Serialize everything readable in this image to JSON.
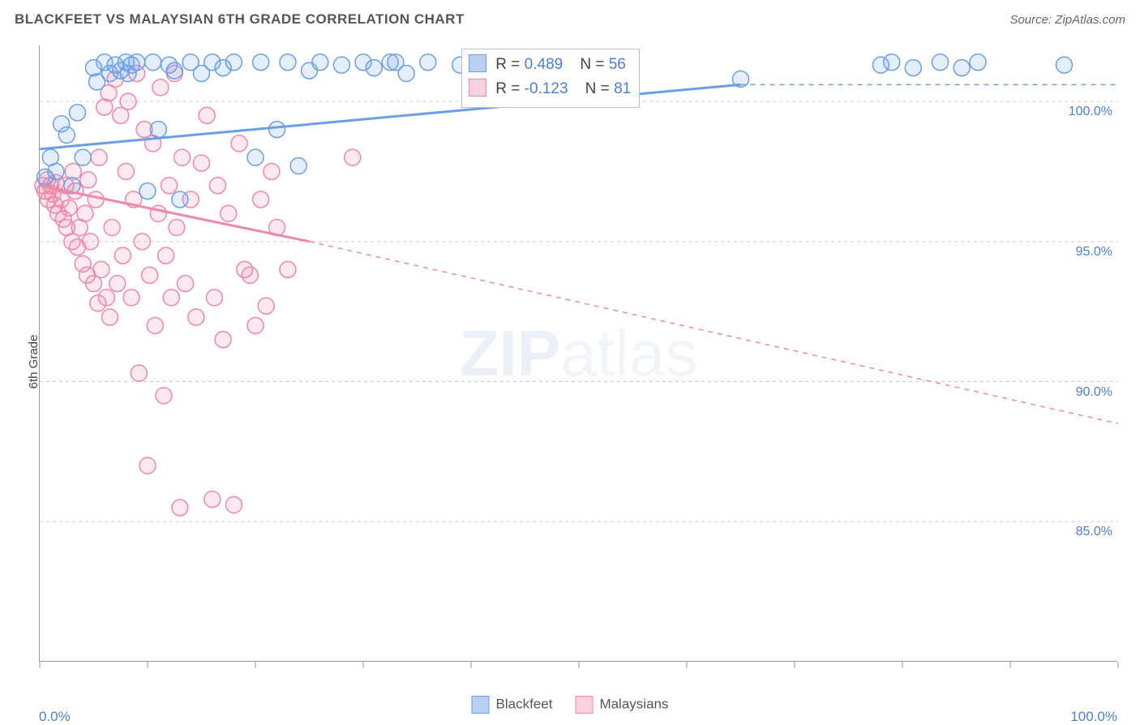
{
  "header": {
    "title": "BLACKFEET VS MALAYSIAN 6TH GRADE CORRELATION CHART",
    "source": "Source: ZipAtlas.com",
    "title_color": "#555555",
    "title_fontsize": 17
  },
  "watermark": {
    "zip": "ZIP",
    "atlas": "atlas"
  },
  "chart": {
    "type": "scatter-with-regression",
    "ylabel": "6th Grade",
    "xlim": [
      0,
      100
    ],
    "ylim": [
      80,
      102
    ],
    "x_tick_positions": [
      0,
      10,
      20,
      30,
      40,
      50,
      60,
      70,
      80,
      90,
      100
    ],
    "x_tick_labels_shown": {
      "0": "0.0%",
      "100": "100.0%"
    },
    "y_gridlines": [
      85,
      90,
      95,
      100
    ],
    "y_tick_labels": {
      "85": "85.0%",
      "90": "90.0%",
      "95": "95.0%",
      "100": "100.0%"
    },
    "grid_color": "#cccccc",
    "grid_dash": "4,4",
    "axis_color": "#999999",
    "label_color": "#4a7fd6",
    "plot_bg": "#ffffff",
    "marker_radius": 10,
    "marker_stroke_width": 1.5,
    "marker_fill_opacity": 0.18
  },
  "series": {
    "blackfeet": {
      "label": "Blackfeet",
      "color": "#6a9ee8",
      "fill": "#b9d0f2",
      "R": "0.489",
      "N": "56",
      "regression": {
        "x1": 0,
        "y1": 98.3,
        "x2": 65,
        "y2": 100.6,
        "solid": true,
        "dash_after_x": 65,
        "x3": 100,
        "y3": 100.6
      },
      "points": [
        [
          0.5,
          97.3
        ],
        [
          1,
          98.0
        ],
        [
          1.5,
          97.5
        ],
        [
          2,
          99.2
        ],
        [
          2.5,
          98.8
        ],
        [
          3,
          97.0
        ],
        [
          3.5,
          99.6
        ],
        [
          4,
          98.0
        ],
        [
          5,
          101.2
        ],
        [
          5.3,
          100.7
        ],
        [
          6,
          101.4
        ],
        [
          6.5,
          101.0
        ],
        [
          7,
          101.3
        ],
        [
          7.5,
          101.1
        ],
        [
          8,
          101.4
        ],
        [
          8.2,
          101.0
        ],
        [
          8.5,
          101.3
        ],
        [
          9,
          101.4
        ],
        [
          10,
          96.8
        ],
        [
          10.5,
          101.4
        ],
        [
          11,
          99.0
        ],
        [
          12,
          101.3
        ],
        [
          12.5,
          101.1
        ],
        [
          13,
          96.5
        ],
        [
          14,
          101.4
        ],
        [
          15,
          101.0
        ],
        [
          16,
          101.4
        ],
        [
          17,
          101.2
        ],
        [
          18,
          101.4
        ],
        [
          20,
          98.0
        ],
        [
          20.5,
          101.4
        ],
        [
          22,
          99.0
        ],
        [
          23,
          101.4
        ],
        [
          24,
          97.7
        ],
        [
          25,
          101.1
        ],
        [
          26,
          101.4
        ],
        [
          28,
          101.3
        ],
        [
          30,
          101.4
        ],
        [
          31,
          101.2
        ],
        [
          32.5,
          101.4
        ],
        [
          33,
          101.4
        ],
        [
          34,
          101.0
        ],
        [
          36,
          101.4
        ],
        [
          39,
          101.3
        ],
        [
          40,
          101.4
        ],
        [
          43,
          101.3
        ],
        [
          45,
          101.4
        ],
        [
          47,
          101.1
        ],
        [
          65,
          100.8
        ],
        [
          78,
          101.3
        ],
        [
          79,
          101.4
        ],
        [
          81,
          101.2
        ],
        [
          83.5,
          101.4
        ],
        [
          85.5,
          101.2
        ],
        [
          87,
          101.4
        ],
        [
          95,
          101.3
        ]
      ]
    },
    "malaysians": {
      "label": "Malaysians",
      "color": "#ef87a6",
      "fill": "#fcd0dd",
      "R": "-0.123",
      "N": "81",
      "regression": {
        "x1": 0,
        "y1": 97.0,
        "x2": 25,
        "y2": 95.0,
        "solid": true,
        "dash_after_x": 25,
        "x3": 100,
        "y3": 88.5
      },
      "points": [
        [
          0.3,
          97.0
        ],
        [
          0.5,
          96.8
        ],
        [
          0.7,
          97.2
        ],
        [
          0.8,
          96.5
        ],
        [
          1,
          97.0
        ],
        [
          1.2,
          96.7
        ],
        [
          1.4,
          96.3
        ],
        [
          1.5,
          97.1
        ],
        [
          1.7,
          96.0
        ],
        [
          2,
          96.5
        ],
        [
          2.2,
          95.8
        ],
        [
          2.4,
          97.0
        ],
        [
          2.5,
          95.5
        ],
        [
          2.7,
          96.2
        ],
        [
          3,
          95.0
        ],
        [
          3.1,
          97.5
        ],
        [
          3.3,
          96.8
        ],
        [
          3.5,
          94.8
        ],
        [
          3.7,
          95.5
        ],
        [
          4,
          94.2
        ],
        [
          4.2,
          96.0
        ],
        [
          4.4,
          93.8
        ],
        [
          4.5,
          97.2
        ],
        [
          4.7,
          95.0
        ],
        [
          5,
          93.5
        ],
        [
          5.2,
          96.5
        ],
        [
          5.4,
          92.8
        ],
        [
          5.5,
          98.0
        ],
        [
          5.7,
          94.0
        ],
        [
          6,
          99.8
        ],
        [
          6.2,
          93.0
        ],
        [
          6.4,
          100.3
        ],
        [
          6.5,
          92.3
        ],
        [
          6.7,
          95.5
        ],
        [
          7,
          100.8
        ],
        [
          7.2,
          93.5
        ],
        [
          7.5,
          99.5
        ],
        [
          7.7,
          94.5
        ],
        [
          8,
          97.5
        ],
        [
          8.2,
          100.0
        ],
        [
          8.5,
          93.0
        ],
        [
          8.7,
          96.5
        ],
        [
          9,
          101.0
        ],
        [
          9.2,
          90.3
        ],
        [
          9.5,
          95.0
        ],
        [
          9.7,
          99.0
        ],
        [
          10,
          87.0
        ],
        [
          10.2,
          93.8
        ],
        [
          10.5,
          98.5
        ],
        [
          10.7,
          92.0
        ],
        [
          11,
          96.0
        ],
        [
          11.2,
          100.5
        ],
        [
          11.5,
          89.5
        ],
        [
          11.7,
          94.5
        ],
        [
          12,
          97.0
        ],
        [
          12.2,
          93.0
        ],
        [
          12.5,
          101.0
        ],
        [
          12.7,
          95.5
        ],
        [
          13,
          85.5
        ],
        [
          13.2,
          98.0
        ],
        [
          13.5,
          93.5
        ],
        [
          14,
          96.5
        ],
        [
          14.5,
          92.3
        ],
        [
          15,
          97.8
        ],
        [
          15.5,
          99.5
        ],
        [
          16,
          85.8
        ],
        [
          16.2,
          93.0
        ],
        [
          16.5,
          97.0
        ],
        [
          17,
          91.5
        ],
        [
          17.5,
          96.0
        ],
        [
          18,
          85.6
        ],
        [
          18.5,
          98.5
        ],
        [
          19,
          94.0
        ],
        [
          19.5,
          93.8
        ],
        [
          20,
          92.0
        ],
        [
          20.5,
          96.5
        ],
        [
          21,
          92.7
        ],
        [
          21.5,
          97.5
        ],
        [
          22,
          95.5
        ],
        [
          23,
          94.0
        ],
        [
          29,
          98.0
        ]
      ]
    }
  },
  "stat_box": {
    "R_label": "R =",
    "N_label": "N ="
  },
  "legend_bottom": [
    {
      "key": "blackfeet",
      "label": "Blackfeet"
    },
    {
      "key": "malaysians",
      "label": "Malaysians"
    }
  ]
}
